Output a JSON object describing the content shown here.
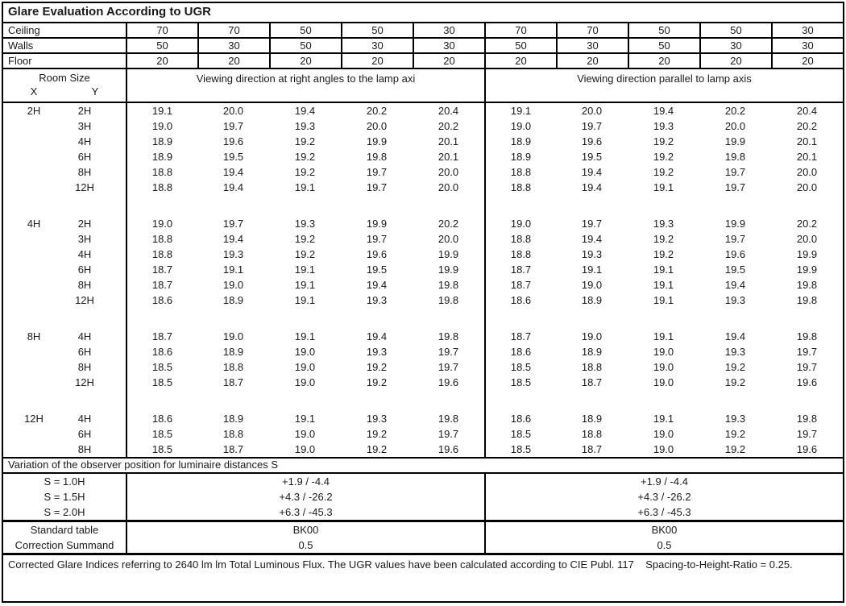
{
  "title": "Glare Evaluation According to UGR",
  "surfaces": {
    "rows": [
      {
        "label": "Ceiling",
        "values": [
          "70",
          "70",
          "50",
          "50",
          "30",
          "70",
          "70",
          "50",
          "50",
          "30"
        ]
      },
      {
        "label": "Walls",
        "values": [
          "50",
          "30",
          "50",
          "30",
          "30",
          "50",
          "30",
          "50",
          "30",
          "30"
        ]
      },
      {
        "label": "Floor",
        "values": [
          "20",
          "20",
          "20",
          "20",
          "20",
          "20",
          "20",
          "20",
          "20",
          "20"
        ]
      }
    ]
  },
  "header": {
    "room_size_label": "Room Size",
    "x_label": "X",
    "y_label": "Y",
    "section_left": "Viewing direction at right angles to the lamp axi",
    "section_right": "Viewing direction parallel to lamp axis"
  },
  "ugr_table": {
    "blocks": [
      {
        "x": "2H",
        "rows": [
          {
            "y": "2H",
            "values": [
              "19.1",
              "20.0",
              "19.4",
              "20.2",
              "20.4",
              "19.1",
              "20.0",
              "19.4",
              "20.2",
              "20.4"
            ]
          },
          {
            "y": "3H",
            "values": [
              "19.0",
              "19.7",
              "19.3",
              "20.0",
              "20.2",
              "19.0",
              "19.7",
              "19.3",
              "20.0",
              "20.2"
            ]
          },
          {
            "y": "4H",
            "values": [
              "18.9",
              "19.6",
              "19.2",
              "19.9",
              "20.1",
              "18.9",
              "19.6",
              "19.2",
              "19.9",
              "20.1"
            ]
          },
          {
            "y": "6H",
            "values": [
              "18.9",
              "19.5",
              "19.2",
              "19.8",
              "20.1",
              "18.9",
              "19.5",
              "19.2",
              "19.8",
              "20.1"
            ]
          },
          {
            "y": "8H",
            "values": [
              "18.8",
              "19.4",
              "19.2",
              "19.7",
              "20.0",
              "18.8",
              "19.4",
              "19.2",
              "19.7",
              "20.0"
            ]
          },
          {
            "y": "12H",
            "values": [
              "18.8",
              "19.4",
              "19.1",
              "19.7",
              "20.0",
              "18.8",
              "19.4",
              "19.1",
              "19.7",
              "20.0"
            ]
          }
        ]
      },
      {
        "x": "4H",
        "rows": [
          {
            "y": "2H",
            "values": [
              "19.0",
              "19.7",
              "19.3",
              "19.9",
              "20.2",
              "19.0",
              "19.7",
              "19.3",
              "19.9",
              "20.2"
            ]
          },
          {
            "y": "3H",
            "values": [
              "18.8",
              "19.4",
              "19.2",
              "19.7",
              "20.0",
              "18.8",
              "19.4",
              "19.2",
              "19.7",
              "20.0"
            ]
          },
          {
            "y": "4H",
            "values": [
              "18.8",
              "19.3",
              "19.2",
              "19.6",
              "19.9",
              "18.8",
              "19.3",
              "19.2",
              "19.6",
              "19.9"
            ]
          },
          {
            "y": "6H",
            "values": [
              "18.7",
              "19.1",
              "19.1",
              "19.5",
              "19.9",
              "18.7",
              "19.1",
              "19.1",
              "19.5",
              "19.9"
            ]
          },
          {
            "y": "8H",
            "values": [
              "18.7",
              "19.0",
              "19.1",
              "19.4",
              "19.8",
              "18.7",
              "19.0",
              "19.1",
              "19.4",
              "19.8"
            ]
          },
          {
            "y": "12H",
            "values": [
              "18.6",
              "18.9",
              "19.1",
              "19.3",
              "19.8",
              "18.6",
              "18.9",
              "19.1",
              "19.3",
              "19.8"
            ]
          }
        ]
      },
      {
        "x": "8H",
        "rows": [
          {
            "y": "4H",
            "values": [
              "18.7",
              "19.0",
              "19.1",
              "19.4",
              "19.8",
              "18.7",
              "19.0",
              "19.1",
              "19.4",
              "19.8"
            ]
          },
          {
            "y": "6H",
            "values": [
              "18.6",
              "18.9",
              "19.0",
              "19.3",
              "19.7",
              "18.6",
              "18.9",
              "19.0",
              "19.3",
              "19.7"
            ]
          },
          {
            "y": "8H",
            "values": [
              "18.5",
              "18.8",
              "19.0",
              "19.2",
              "19.7",
              "18.5",
              "18.8",
              "19.0",
              "19.2",
              "19.7"
            ]
          },
          {
            "y": "12H",
            "values": [
              "18.5",
              "18.7",
              "19.0",
              "19.2",
              "19.6",
              "18.5",
              "18.7",
              "19.0",
              "19.2",
              "19.6"
            ]
          }
        ]
      },
      {
        "x": "12H",
        "rows": [
          {
            "y": "4H",
            "values": [
              "18.6",
              "18.9",
              "19.1",
              "19.3",
              "19.8",
              "18.6",
              "18.9",
              "19.1",
              "19.3",
              "19.8"
            ]
          },
          {
            "y": "6H",
            "values": [
              "18.5",
              "18.8",
              "19.0",
              "19.2",
              "19.7",
              "18.5",
              "18.8",
              "19.0",
              "19.2",
              "19.7"
            ]
          },
          {
            "y": "8H",
            "values": [
              "18.5",
              "18.7",
              "19.0",
              "19.2",
              "19.6",
              "18.5",
              "18.7",
              "19.0",
              "19.2",
              "19.6"
            ]
          }
        ]
      }
    ]
  },
  "variation": {
    "heading": "Variation of the observer position for luminaire distances S",
    "rows": [
      {
        "label": "S = 1.0H",
        "left": "+1.9 / -4.4",
        "right": "+1.9 / -4.4"
      },
      {
        "label": "S = 1.5H",
        "left": "+4.3 / -26.2",
        "right": "+4.3 / -26.2"
      },
      {
        "label": "S = 2.0H",
        "left": "+6.3 / -45.3",
        "right": "+6.3 / -45.3"
      }
    ]
  },
  "summary": {
    "rows": [
      {
        "label": "Standard table",
        "left": "BK00",
        "right": "BK00"
      },
      {
        "label": "Correction Summand",
        "left": "0.5",
        "right": "0.5"
      }
    ]
  },
  "footer": "Corrected Glare Indices referring to 2640 lm lm Total Luminous Flux. The UGR values have been calculated according to CIE Publ. 117    Spacing-to-Height-Ratio = 0.25.",
  "colors": {
    "border": "#000000",
    "text": "#1a1a1a",
    "background": "#ffffff"
  }
}
